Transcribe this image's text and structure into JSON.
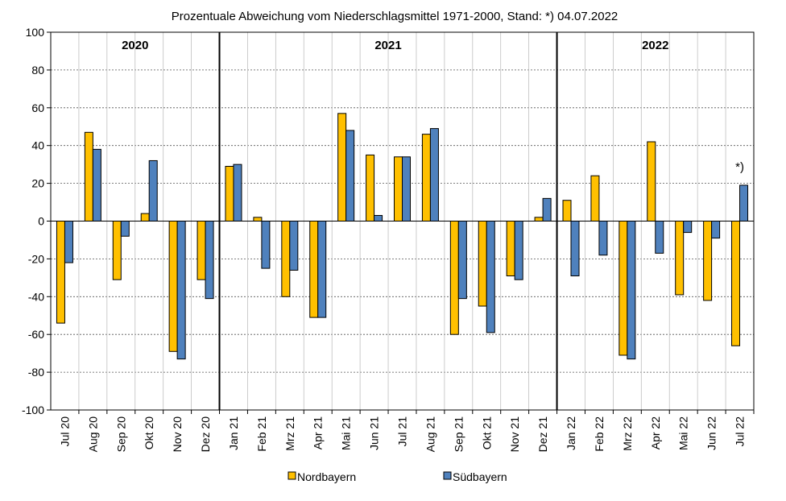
{
  "chart_data": {
    "type": "bar",
    "title": "Prozentuale Abweichung vom Niederschlagsmittel 1971-2000, Stand: *) 04.07.2022",
    "xlabel": "",
    "ylabel": "",
    "ylim": [
      -100,
      100
    ],
    "yticks": [
      -100,
      -80,
      -60,
      -40,
      -20,
      0,
      20,
      40,
      60,
      80,
      100
    ],
    "grid": true,
    "legend_position": "bottom",
    "categories": [
      "Jul 20",
      "Aug 20",
      "Sep 20",
      "Okt 20",
      "Nov 20",
      "Dez 20",
      "Jan 21",
      "Feb 21",
      "Mrz 21",
      "Apr 21",
      "Mai 21",
      "Jun 21",
      "Jul 21",
      "Aug 21",
      "Sep 21",
      "Okt 21",
      "Nov 21",
      "Dez 21",
      "Jan 22",
      "Feb 22",
      "Mrz 22",
      "Apr 22",
      "Mai 22",
      "Jun 22",
      "Jul 22"
    ],
    "series": [
      {
        "name": "Nordbayern",
        "color": "#FFC000",
        "values": [
          -54,
          47,
          -31,
          4,
          -69,
          -31,
          29,
          2,
          -40,
          -51,
          57,
          35,
          34,
          46,
          -60,
          -45,
          -29,
          2,
          11,
          24,
          -71,
          42,
          -39,
          -42,
          -66
        ]
      },
      {
        "name": "Südbayern",
        "color": "#4F81BD",
        "values": [
          -22,
          38,
          -8,
          32,
          -73,
          -41,
          30,
          -25,
          -26,
          -51,
          48,
          3,
          34,
          49,
          -41,
          -59,
          -31,
          12,
          -29,
          -18,
          -73,
          -17,
          -6,
          -9,
          19
        ]
      }
    ],
    "year_groups": [
      {
        "label": "2020",
        "start": 0,
        "end": 5
      },
      {
        "label": "2021",
        "start": 6,
        "end": 17
      },
      {
        "label": "2022",
        "start": 18,
        "end": 24
      }
    ],
    "annotations": [
      {
        "text": "*)",
        "category_index": 24
      }
    ]
  }
}
